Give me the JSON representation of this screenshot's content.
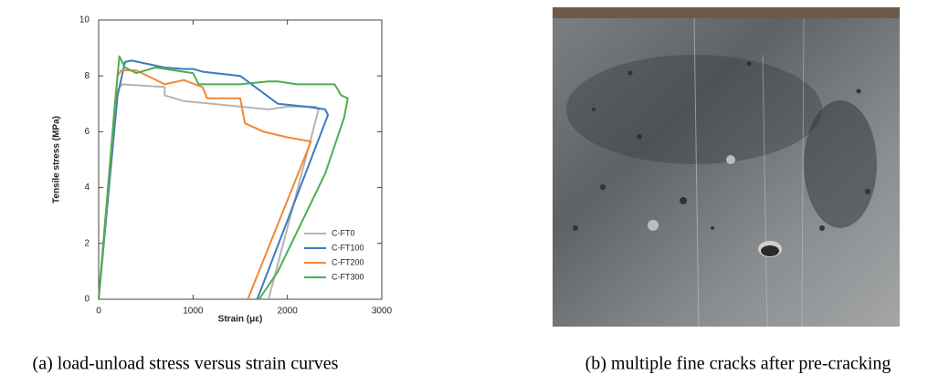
{
  "chart_data": {
    "type": "line",
    "x_label": "Strain (με)",
    "y_label": "Tensile stress (MPa)",
    "xlim": [
      0,
      3000
    ],
    "ylim": [
      0,
      10
    ],
    "xticks": [
      0,
      1000,
      2000,
      3000
    ],
    "yticks": [
      0,
      2,
      4,
      6,
      8,
      10
    ],
    "legend": "lower right",
    "series": [
      {
        "name": "C-FT0",
        "color": "#b4b4b4",
        "x": [
          0,
          200,
          250,
          700,
          700,
          900,
          1200,
          1500,
          1800,
          2000,
          2300,
          2330,
          1800
        ],
        "values": [
          0,
          7.5,
          7.7,
          7.6,
          7.3,
          7.1,
          7.0,
          6.9,
          6.8,
          6.9,
          6.9,
          6.8,
          0
        ]
      },
      {
        "name": "C-FT100",
        "color": "#3d7bbf",
        "x": [
          0,
          200,
          280,
          350,
          700,
          900,
          1000,
          1100,
          1500,
          1900,
          2200,
          2400,
          2430,
          1680
        ],
        "values": [
          0,
          7.3,
          8.5,
          8.55,
          8.3,
          8.25,
          8.25,
          8.15,
          8.0,
          7.0,
          6.9,
          6.8,
          6.6,
          0
        ]
      },
      {
        "name": "C-FT200",
        "color": "#f0883a",
        "x": [
          0,
          200,
          240,
          400,
          700,
          900,
          1100,
          1150,
          1500,
          1550,
          1750,
          2000,
          2250,
          1580
        ],
        "values": [
          0,
          8.0,
          8.2,
          8.2,
          7.7,
          7.85,
          7.6,
          7.2,
          7.2,
          6.3,
          6.0,
          5.8,
          5.65,
          0
        ]
      },
      {
        "name": "C-FT300",
        "color": "#4caf50",
        "x": [
          0,
          180,
          220,
          280,
          400,
          600,
          1000,
          1060,
          1500,
          1800,
          1900,
          2100,
          2500,
          2570,
          2640,
          2600,
          2400,
          1900,
          1700
        ],
        "values": [
          0,
          7.3,
          8.7,
          8.3,
          8.1,
          8.3,
          8.1,
          7.7,
          7.7,
          7.8,
          7.8,
          7.7,
          7.7,
          7.3,
          7.2,
          6.5,
          4.5,
          1.0,
          0
        ]
      }
    ]
  },
  "captions": [
    "(a) load-unload stress versus strain curves",
    "(b) multiple fine cracks after pre-cracking"
  ]
}
